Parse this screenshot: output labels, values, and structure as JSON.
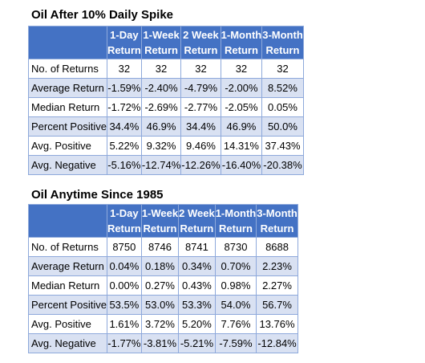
{
  "tables": [
    {
      "title": "Oil After 10% Daily Spike",
      "headers": [
        [
          "1-Day",
          "Return"
        ],
        [
          "1-Week",
          "Return"
        ],
        [
          "2 Week",
          "Return"
        ],
        [
          "1-Month",
          "Return"
        ],
        [
          "3-Month",
          "Return"
        ]
      ],
      "rows": [
        {
          "label": "No. of Returns",
          "values": [
            "32",
            "32",
            "32",
            "32",
            "32"
          ]
        },
        {
          "label": "Average Return",
          "values": [
            "-1.59%",
            "-2.40%",
            "-4.79%",
            "-2.00%",
            "8.52%"
          ]
        },
        {
          "label": "Median Return",
          "values": [
            "-1.72%",
            "-2.69%",
            "-2.77%",
            "-2.05%",
            "0.05%"
          ]
        },
        {
          "label": "Percent Positive",
          "values": [
            "34.4%",
            "46.9%",
            "34.4%",
            "46.9%",
            "50.0%"
          ]
        },
        {
          "label": "Avg. Positive",
          "values": [
            "5.22%",
            "9.32%",
            "9.46%",
            "14.31%",
            "37.43%"
          ]
        },
        {
          "label": "Avg. Negative",
          "values": [
            "-5.16%",
            "-12.74%",
            "-12.26%",
            "-16.40%",
            "-20.38%"
          ]
        }
      ]
    },
    {
      "title": "Oil Anytime Since 1985",
      "headers": [
        [
          "1-Day",
          "Return"
        ],
        [
          "1-Week",
          "Return"
        ],
        [
          "2 Week",
          "Return"
        ],
        [
          "1-Month",
          "Return"
        ],
        [
          "3-Month",
          "Return"
        ]
      ],
      "rows": [
        {
          "label": "No. of Returns",
          "values": [
            "8750",
            "8746",
            "8741",
            "8730",
            "8688"
          ]
        },
        {
          "label": "Average Return",
          "values": [
            "0.04%",
            "0.18%",
            "0.34%",
            "0.70%",
            "2.23%"
          ]
        },
        {
          "label": "Median Return",
          "values": [
            "0.00%",
            "0.27%",
            "0.43%",
            "0.98%",
            "2.27%"
          ]
        },
        {
          "label": "Percent Positive",
          "values": [
            "53.5%",
            "53.0%",
            "53.3%",
            "54.0%",
            "56.7%"
          ]
        },
        {
          "label": "Avg. Positive",
          "values": [
            "1.61%",
            "3.72%",
            "5.20%",
            "7.76%",
            "13.76%"
          ]
        },
        {
          "label": "Avg. Negative",
          "values": [
            "-1.77%",
            "-3.81%",
            "-5.21%",
            "-7.59%",
            "-12.84%"
          ]
        }
      ]
    }
  ],
  "colors": {
    "header_bg": "#4472c4",
    "header_text": "#ffffff",
    "band_bg": "#d9e1f2",
    "row_bg": "#ffffff",
    "border": "#8ea9db"
  }
}
